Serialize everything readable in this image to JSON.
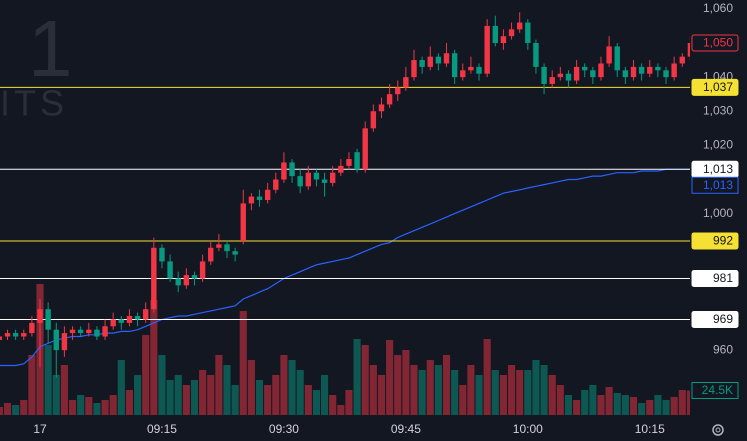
{
  "chart_data": {
    "type": "candlestick",
    "watermark": [
      "1",
      "ITS"
    ],
    "categories": [
      null,
      null,
      null,
      null,
      null,
      "17",
      null,
      null,
      null,
      null,
      null,
      null,
      null,
      null,
      null,
      null,
      null,
      null,
      null,
      null,
      "09:15",
      null,
      null,
      null,
      null,
      null,
      null,
      null,
      null,
      null,
      null,
      null,
      null,
      null,
      null,
      "09:30",
      null,
      null,
      null,
      null,
      null,
      null,
      null,
      null,
      null,
      null,
      null,
      null,
      null,
      null,
      "09:45",
      null,
      null,
      null,
      null,
      null,
      null,
      null,
      null,
      null,
      null,
      null,
      null,
      null,
      null,
      "10:00",
      null,
      null,
      null,
      null,
      null,
      null,
      null,
      null,
      null,
      null,
      null,
      null,
      null,
      null,
      "10:15",
      null,
      null,
      null,
      null,
      null
    ],
    "ohlc": [
      [
        963,
        966,
        962,
        964
      ],
      [
        964,
        966,
        963,
        965
      ],
      [
        965,
        966,
        963,
        964
      ],
      [
        964,
        966,
        963,
        965
      ],
      [
        965,
        970,
        964,
        968
      ],
      [
        968,
        975,
        955,
        972
      ],
      [
        972,
        974,
        962,
        966
      ],
      [
        966,
        968,
        952,
        960
      ],
      [
        960,
        967,
        958,
        965
      ],
      [
        965,
        967,
        963,
        966
      ],
      [
        966,
        967,
        964,
        965
      ],
      [
        965,
        968,
        964,
        966
      ],
      [
        966,
        967,
        963,
        964
      ],
      [
        964,
        969,
        963,
        967
      ],
      [
        967,
        971,
        966,
        969
      ],
      [
        969,
        970,
        966,
        968
      ],
      [
        968,
        972,
        967,
        970
      ],
      [
        970,
        971,
        967,
        969
      ],
      [
        969,
        974,
        968,
        972
      ],
      [
        972,
        993,
        971,
        990
      ],
      [
        990,
        991,
        984,
        986
      ],
      [
        986,
        988,
        980,
        981
      ],
      [
        981,
        983,
        977,
        979
      ],
      [
        979,
        984,
        978,
        982
      ],
      [
        982,
        983,
        979,
        981
      ],
      [
        981,
        988,
        980,
        986
      ],
      [
        986,
        992,
        985,
        990
      ],
      [
        990,
        994,
        989,
        991
      ],
      [
        991,
        992,
        987,
        989
      ],
      [
        989,
        990,
        986,
        988
      ],
      [
        992,
        1007,
        991,
        1003
      ],
      [
        1003,
        1006,
        1001,
        1005
      ],
      [
        1005,
        1007,
        1002,
        1004
      ],
      [
        1004,
        1009,
        1003,
        1007
      ],
      [
        1007,
        1012,
        1006,
        1010
      ],
      [
        1010,
        1018,
        1009,
        1015
      ],
      [
        1015,
        1016,
        1009,
        1011
      ],
      [
        1011,
        1013,
        1006,
        1008
      ],
      [
        1008,
        1014,
        1007,
        1012
      ],
      [
        1012,
        1013,
        1008,
        1010
      ],
      [
        1010,
        1012,
        1005,
        1009
      ],
      [
        1009,
        1014,
        1008,
        1012
      ],
      [
        1012,
        1016,
        1011,
        1014
      ],
      [
        1014,
        1018,
        1013,
        1016
      ],
      [
        1018,
        1019,
        1012,
        1013
      ],
      [
        1013,
        1027,
        1012,
        1025
      ],
      [
        1025,
        1032,
        1024,
        1030
      ],
      [
        1030,
        1034,
        1028,
        1032
      ],
      [
        1032,
        1038,
        1031,
        1035
      ],
      [
        1035,
        1039,
        1033,
        1037
      ],
      [
        1037,
        1043,
        1036,
        1040
      ],
      [
        1040,
        1048,
        1039,
        1045
      ],
      [
        1045,
        1046,
        1041,
        1043
      ],
      [
        1043,
        1049,
        1042,
        1046
      ],
      [
        1046,
        1047,
        1042,
        1044
      ],
      [
        1044,
        1050,
        1043,
        1047
      ],
      [
        1047,
        1048,
        1038,
        1040
      ],
      [
        1040,
        1044,
        1039,
        1042
      ],
      [
        1042,
        1046,
        1041,
        1043
      ],
      [
        1043,
        1044,
        1039,
        1041
      ],
      [
        1041,
        1057,
        1040,
        1055
      ],
      [
        1055,
        1058,
        1049,
        1050
      ],
      [
        1050,
        1054,
        1048,
        1052
      ],
      [
        1052,
        1056,
        1051,
        1054
      ],
      [
        1054,
        1059,
        1053,
        1056
      ],
      [
        1056,
        1057,
        1048,
        1050
      ],
      [
        1050,
        1051,
        1041,
        1043
      ],
      [
        1043,
        1044,
        1035,
        1038
      ],
      [
        1038,
        1042,
        1037,
        1040
      ],
      [
        1040,
        1043,
        1039,
        1041
      ],
      [
        1041,
        1042,
        1037,
        1039
      ],
      [
        1039,
        1045,
        1038,
        1043
      ],
      [
        1043,
        1044,
        1040,
        1042
      ],
      [
        1042,
        1043,
        1038,
        1040
      ],
      [
        1040,
        1046,
        1039,
        1044
      ],
      [
        1044,
        1052,
        1043,
        1049
      ],
      [
        1049,
        1050,
        1040,
        1042
      ],
      [
        1042,
        1043,
        1038,
        1040
      ],
      [
        1040,
        1045,
        1039,
        1043
      ],
      [
        1043,
        1044,
        1039,
        1041
      ],
      [
        1041,
        1045,
        1040,
        1043
      ],
      [
        1043,
        1044,
        1040,
        1042
      ],
      [
        1042,
        1043,
        1038,
        1040
      ],
      [
        1040,
        1046,
        1039,
        1044
      ],
      [
        1044,
        1047,
        1043,
        1046
      ],
      [
        1046,
        1052,
        1045,
        1050
      ]
    ],
    "volume": [
      8000,
      12000,
      10000,
      15000,
      60000,
      131000,
      70000,
      40000,
      50000,
      15000,
      20000,
      18000,
      12000,
      15000,
      20000,
      55000,
      25000,
      40000,
      80000,
      115000,
      60000,
      35000,
      40000,
      30000,
      35000,
      45000,
      40000,
      60000,
      50000,
      30000,
      104000,
      55000,
      35000,
      30000,
      40000,
      60000,
      55000,
      45000,
      30000,
      25000,
      40000,
      20000,
      10000,
      25000,
      76000,
      70000,
      50000,
      40000,
      75000,
      60000,
      65000,
      50000,
      45000,
      55000,
      50000,
      60000,
      45000,
      30000,
      50000,
      40000,
      76000,
      45000,
      40000,
      50000,
      45000,
      45000,
      55000,
      50000,
      40000,
      30000,
      20000,
      15000,
      25000,
      30000,
      20000,
      28000,
      22000,
      20000,
      18000,
      12000,
      15000,
      20000,
      15000,
      18000,
      25000,
      24500
    ],
    "last_volume_label": "24.5K",
    "moving_average": {
      "color": "#2962ff",
      "values": [
        955.5,
        955.5,
        955.5,
        956,
        958,
        961,
        962,
        963,
        963.5,
        964,
        964,
        964.5,
        964.5,
        965,
        965,
        965.5,
        965.5,
        966,
        967,
        968,
        969,
        969.5,
        970,
        970,
        970.5,
        971,
        971.5,
        972,
        972.5,
        973,
        975,
        976,
        977,
        978,
        979.5,
        981,
        982,
        983,
        984,
        985,
        985.5,
        986,
        986.5,
        987,
        988,
        989,
        990,
        991,
        991.5,
        993,
        994,
        995,
        996,
        997,
        998,
        999,
        1000,
        1001,
        1002,
        1003,
        1004,
        1005,
        1006,
        1006.5,
        1007,
        1007.5,
        1008,
        1008.5,
        1009,
        1009.5,
        1010,
        1010,
        1010.5,
        1011,
        1011,
        1011.5,
        1012,
        1012,
        1012,
        1012.5,
        1012.5,
        1012.5,
        1013,
        1013,
        1013,
        1013
      ],
      "last": {
        "value": 1013,
        "label": "1,013"
      }
    },
    "up_color": "#f23645",
    "down_color": "#089981",
    "ylim": [
      941,
      1062.6
    ],
    "yticks": [
      {
        "value": 1060,
        "label": "1,060"
      },
      {
        "value": 1040,
        "label": "1,040"
      },
      {
        "value": 1030,
        "label": "1,030"
      },
      {
        "value": 1020,
        "label": "1,020"
      },
      {
        "value": 1000,
        "label": "1,000"
      },
      960
    ],
    "volume_ylim": [
      0,
      180000
    ],
    "last_price": {
      "value": 1050,
      "label": "1,050"
    },
    "price_lines": [
      {
        "value": {
          "value": 1037,
          "label": "1,037"
        },
        "color": "#f5e133"
      },
      {
        "value": {
          "value": 1013,
          "label": "1,013"
        },
        "color": "#ffffff"
      },
      {
        "value": 992,
        "color": "#f5e133"
      },
      {
        "value": 981,
        "color": "#ffffff"
      },
      {
        "value": 969,
        "color": "#ffffff"
      }
    ]
  }
}
